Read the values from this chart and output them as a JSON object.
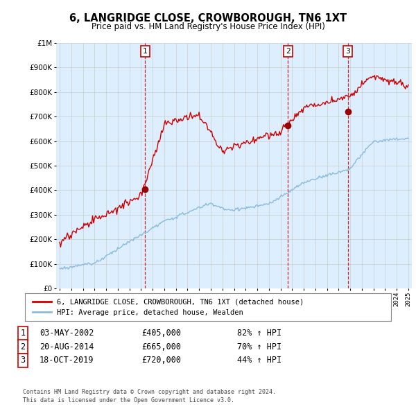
{
  "title": "6, LANGRIDGE CLOSE, CROWBOROUGH, TN6 1XT",
  "subtitle": "Price paid vs. HM Land Registry's House Price Index (HPI)",
  "legend_line1": "6, LANGRIDGE CLOSE, CROWBOROUGH, TN6 1XT (detached house)",
  "legend_line2": "HPI: Average price, detached house, Wealden",
  "footer1": "Contains HM Land Registry data © Crown copyright and database right 2024.",
  "footer2": "This data is licensed under the Open Government Licence v3.0.",
  "table": [
    {
      "num": "1",
      "date": "03-MAY-2002",
      "price": "£405,000",
      "change": "82% ↑ HPI"
    },
    {
      "num": "2",
      "date": "20-AUG-2014",
      "price": "£665,000",
      "change": "70% ↑ HPI"
    },
    {
      "num": "3",
      "date": "18-OCT-2019",
      "price": "£720,000",
      "change": "44% ↑ HPI"
    }
  ],
  "sale_points": [
    {
      "year": 2002.35,
      "value": 405000
    },
    {
      "year": 2014.63,
      "value": 665000
    },
    {
      "year": 2019.79,
      "value": 720000
    }
  ],
  "sale_labels": [
    "1",
    "2",
    "3"
  ],
  "hpi_color": "#88bbdd",
  "price_color": "#cc0000",
  "sale_dot_color": "#990000",
  "vline_color": "#cc0000",
  "grid_color": "#cccccc",
  "chart_bg": "#ddeeff",
  "background_color": "#ffffff",
  "ylim": [
    0,
    1000000
  ],
  "xlim_start": 1994.7,
  "xlim_end": 2025.3
}
